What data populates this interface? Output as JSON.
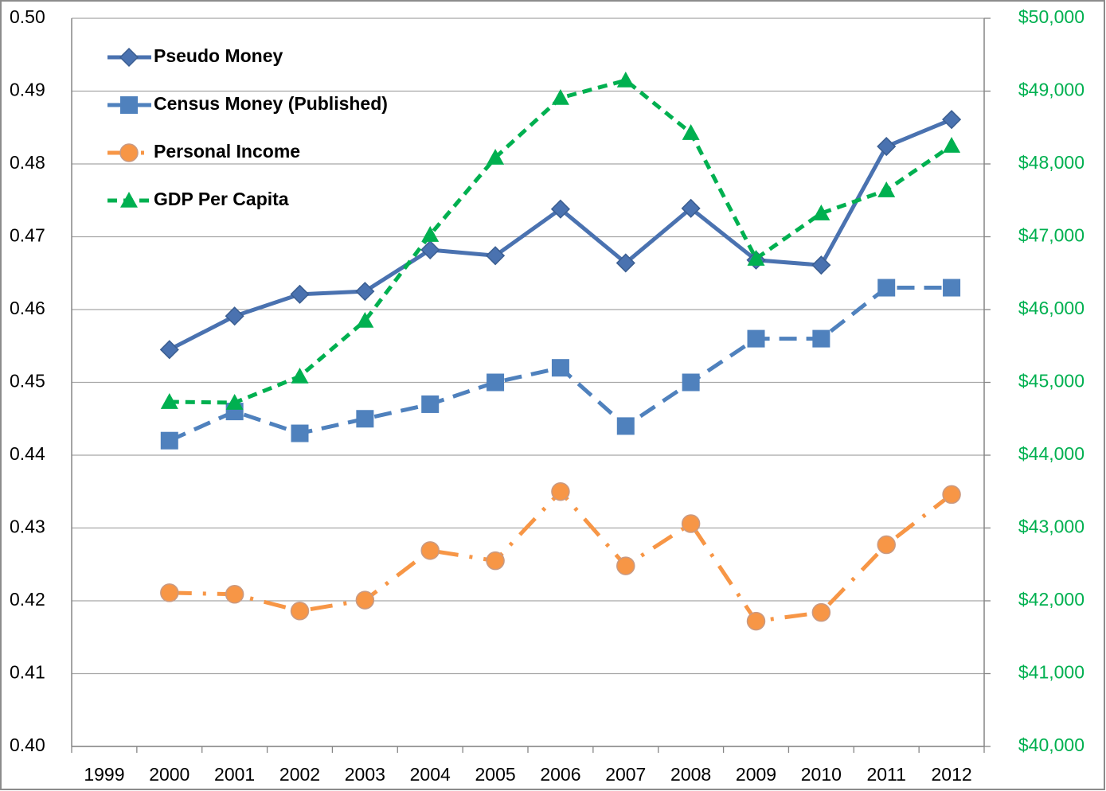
{
  "chart_data": {
    "type": "line",
    "categories": [
      "1999",
      "2000",
      "2001",
      "2002",
      "2003",
      "2004",
      "2005",
      "2006",
      "2007",
      "2008",
      "2009",
      "2010",
      "2011",
      "2012"
    ],
    "series": [
      {
        "name": "Pseudo Money",
        "color": "#4a72b0",
        "marker": "diamond",
        "dash": "solid",
        "values": [
          null,
          0.4545,
          0.4591,
          0.4621,
          0.4625,
          0.4682,
          0.4674,
          0.4738,
          0.4664,
          0.4739,
          0.4668,
          0.4661,
          0.4824,
          0.4861
        ]
      },
      {
        "name": "Census Money (Published)",
        "color": "#4f81bd",
        "marker": "square",
        "dash": "dashed",
        "values": [
          null,
          0.442,
          0.446,
          0.443,
          0.445,
          0.447,
          0.45,
          0.452,
          0.444,
          0.45,
          0.456,
          0.456,
          0.463,
          0.463
        ]
      },
      {
        "name": "Personal Income",
        "color": "#f79646",
        "marker": "circle",
        "dash": "dash-dot",
        "values": [
          null,
          0.4211,
          0.4209,
          0.4186,
          0.4201,
          0.4269,
          0.4255,
          0.435,
          0.4248,
          0.4306,
          0.4172,
          0.4184,
          0.4277,
          0.4346
        ]
      },
      {
        "name": "GDP Per Capita",
        "color": "#00b050",
        "marker": "triangle",
        "dash": "short-dash",
        "axis": "y2",
        "values": [
          null,
          44732,
          44721,
          45082,
          45847,
          47027,
          48087,
          48907,
          49148,
          48426,
          46699,
          47322,
          47639,
          48251
        ]
      }
    ],
    "ylim": [
      0.4,
      0.5
    ],
    "yticks": [
      {
        "value": 0.4,
        "label": "0.40"
      },
      {
        "value": 0.41,
        "label": "0.41"
      },
      {
        "value": 0.42,
        "label": "0.42"
      },
      {
        "value": 0.43,
        "label": "0.43"
      },
      {
        "value": 0.44,
        "label": "0.44"
      },
      {
        "value": 0.45,
        "label": "0.45"
      },
      {
        "value": 0.46,
        "label": "0.46"
      },
      {
        "value": 0.47,
        "label": "0.47"
      },
      {
        "value": 0.48,
        "label": "0.48"
      },
      {
        "value": 0.49,
        "label": "0.49"
      },
      {
        "value": 0.5,
        "label": "0.50"
      }
    ],
    "y2lim": [
      40000,
      50000
    ],
    "y2ticks": [
      {
        "value": 40000,
        "label": "$40,000"
      },
      {
        "value": 41000,
        "label": "$41,000"
      },
      {
        "value": 42000,
        "label": "$42,000"
      },
      {
        "value": 43000,
        "label": "$43,000"
      },
      {
        "value": 44000,
        "label": "$44,000"
      },
      {
        "value": 45000,
        "label": "$45,000"
      },
      {
        "value": 46000,
        "label": "$46,000"
      },
      {
        "value": 47000,
        "label": "$47,000"
      },
      {
        "value": 48000,
        "label": "$48,000"
      },
      {
        "value": 49000,
        "label": "$49,000"
      },
      {
        "value": 50000,
        "label": "$50,000"
      }
    ],
    "y2color": "#00b050",
    "grid": true,
    "legend": "top-left"
  }
}
